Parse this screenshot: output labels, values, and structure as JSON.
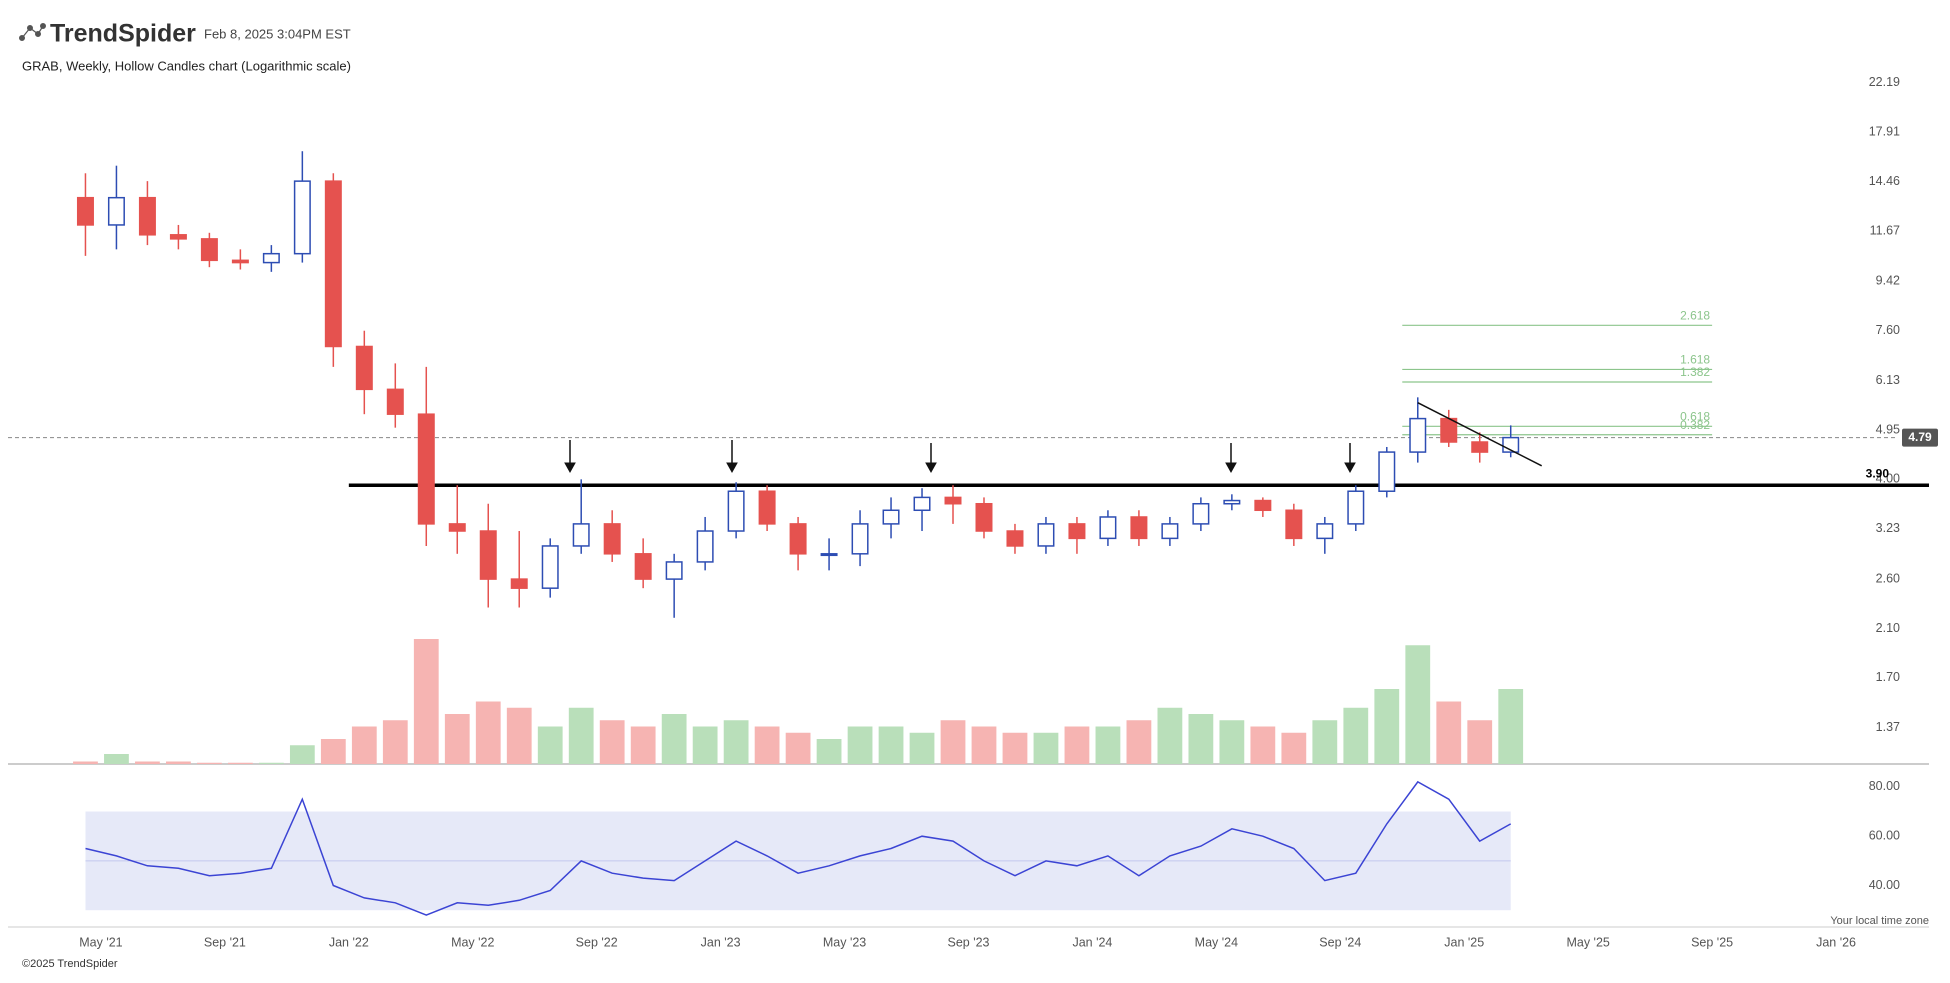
{
  "header": {
    "brand": "TrendSpider",
    "timestamp": "Feb 8, 2025 3:04PM EST",
    "subtitle": "GRAB, Weekly, Hollow Candles chart (Logarithmic scale)"
  },
  "chart_data": {
    "type": "candlestick",
    "x": [
      "2021-04",
      "2021-05",
      "2021-06",
      "2021-07",
      "2021-08",
      "2021-09",
      "2021-10",
      "2021-11",
      "2021-12",
      "2022-01",
      "2022-02",
      "2022-03",
      "2022-04",
      "2022-05",
      "2022-06",
      "2022-07",
      "2022-08",
      "2022-09",
      "2022-10",
      "2022-11",
      "2022-12",
      "2023-01",
      "2023-02",
      "2023-03",
      "2023-04",
      "2023-05",
      "2023-06",
      "2023-07",
      "2023-08",
      "2023-09",
      "2023-10",
      "2023-11",
      "2023-12",
      "2024-01",
      "2024-02",
      "2024-03",
      "2024-04",
      "2024-05",
      "2024-06",
      "2024-07",
      "2024-08",
      "2024-09",
      "2024-10",
      "2024-11",
      "2024-12",
      "2025-01",
      "2025-02"
    ],
    "open": [
      13.5,
      12,
      13.5,
      11.5,
      11.3,
      10.3,
      10.2,
      10.6,
      14.5,
      7.1,
      5.9,
      5.3,
      3.3,
      3.2,
      2.6,
      2.5,
      3.0,
      3.3,
      2.9,
      2.6,
      2.8,
      3.2,
      3.8,
      3.3,
      2.9,
      2.9,
      3.3,
      3.5,
      3.7,
      3.6,
      3.2,
      3.0,
      3.3,
      3.1,
      3.4,
      3.1,
      3.3,
      3.6,
      3.65,
      3.5,
      3.1,
      3.3,
      3.8,
      4.5,
      5.2,
      4.7,
      4.5
    ],
    "high": [
      15,
      15.5,
      14.5,
      12,
      11.6,
      10.8,
      11,
      16.5,
      15,
      7.6,
      6.6,
      6.5,
      3.9,
      3.6,
      3.2,
      3.1,
      4.0,
      3.5,
      3.1,
      2.9,
      3.4,
      3.95,
      3.9,
      3.4,
      3.1,
      3.5,
      3.7,
      3.85,
      3.9,
      3.7,
      3.3,
      3.4,
      3.4,
      3.5,
      3.5,
      3.4,
      3.7,
      3.75,
      3.7,
      3.6,
      3.4,
      3.9,
      4.6,
      5.7,
      5.4,
      4.9,
      5.05
    ],
    "low": [
      10.5,
      10.8,
      11,
      10.8,
      10,
      9.9,
      9.8,
      10.2,
      6.5,
      5.3,
      5.0,
      3.0,
      2.9,
      2.3,
      2.3,
      2.4,
      2.9,
      2.8,
      2.5,
      2.2,
      2.7,
      3.1,
      3.2,
      2.7,
      2.7,
      2.75,
      3.1,
      3.2,
      3.3,
      3.1,
      2.9,
      2.9,
      2.9,
      3.0,
      3.0,
      3.0,
      3.2,
      3.5,
      3.4,
      3.0,
      2.9,
      3.2,
      3.7,
      4.3,
      4.6,
      4.3,
      4.4
    ],
    "close": [
      12,
      13.5,
      11.5,
      11.3,
      10.3,
      10.2,
      10.6,
      14.5,
      7.1,
      5.9,
      5.3,
      3.3,
      3.2,
      2.6,
      2.5,
      3.0,
      3.3,
      2.9,
      2.6,
      2.8,
      3.2,
      3.8,
      3.3,
      2.9,
      2.9,
      3.3,
      3.5,
      3.7,
      3.6,
      3.2,
      3.0,
      3.3,
      3.1,
      3.4,
      3.1,
      3.3,
      3.6,
      3.65,
      3.5,
      3.1,
      3.3,
      3.8,
      4.5,
      5.2,
      4.7,
      4.5,
      4.79
    ],
    "volume": [
      2,
      8,
      2,
      2,
      1,
      1,
      1,
      15,
      20,
      30,
      35,
      100,
      40,
      50,
      45,
      30,
      45,
      35,
      30,
      40,
      30,
      35,
      30,
      25,
      20,
      30,
      30,
      25,
      35,
      30,
      25,
      25,
      30,
      30,
      35,
      45,
      40,
      35,
      30,
      25,
      35,
      45,
      60,
      95,
      50,
      35,
      60
    ],
    "volume_ylim": [
      0,
      120
    ],
    "log_scale": true,
    "ylim": [
      1.17,
      23.03
    ],
    "yticks": [
      22.19,
      17.91,
      14.46,
      11.67,
      9.42,
      {
        "value": 7.6,
        "label": "7.60"
      },
      6.13,
      4.95,
      {
        "value": 4,
        "label": "4.00"
      },
      3.23,
      {
        "value": 2.6,
        "label": "2.60"
      },
      {
        "value": 2.1,
        "label": "2.10"
      },
      {
        "value": 1.7,
        "label": "1.70"
      },
      1.37
    ],
    "xlim": [
      "2021-02",
      "2026-04"
    ],
    "xticks": [
      {
        "value": "2021-05",
        "label": "May '21"
      },
      {
        "value": "2021-09",
        "label": "Sep '21"
      },
      {
        "value": "2022-01",
        "label": "Jan '22"
      },
      {
        "value": "2022-05",
        "label": "May '22"
      },
      {
        "value": "2022-09",
        "label": "Sep '22"
      },
      {
        "value": "2023-01",
        "label": "Jan '23"
      },
      {
        "value": "2023-05",
        "label": "May '23"
      },
      {
        "value": "2023-09",
        "label": "Sep '23"
      },
      {
        "value": "2024-01",
        "label": "Jan '24"
      },
      {
        "value": "2024-05",
        "label": "May '24"
      },
      {
        "value": "2024-09",
        "label": "Sep '24"
      },
      {
        "value": "2025-01",
        "label": "Jan '25"
      },
      {
        "value": "2025-05",
        "label": "May '25"
      },
      {
        "value": "2025-09",
        "label": "Sep '25"
      },
      {
        "value": "2026-01",
        "label": "Jan '26"
      }
    ],
    "up_color": "#2d4db3",
    "down_color": "#e5524f",
    "volume_up_color": "#b9dfba",
    "volume_down_color": "#f6b4b2",
    "last_price": 4.79,
    "support": {
      "value": 3.9,
      "label": "3.90",
      "from": "2022-01"
    },
    "fib_levels": [
      {
        "label": "2.618",
        "value": 7.78
      },
      {
        "label": "1.618",
        "value": 6.43
      },
      {
        "label": "1.382",
        "value": 6.09
      },
      {
        "label": "0.618",
        "value": 5.03
      },
      {
        "label": "0.382",
        "value": 4.85
      }
    ],
    "fib_range": [
      "2024-11",
      "2025-09"
    ],
    "fib_color": "#8cc58c",
    "trendline": {
      "x": [
        "2024-11",
        "2025-03"
      ],
      "y": [
        5.57,
        4.24
      ]
    },
    "rsi": {
      "values": [
        55,
        52,
        48,
        47,
        44,
        45,
        47,
        75,
        40,
        35,
        33,
        28,
        33,
        32,
        34,
        38,
        50,
        45,
        43,
        42,
        50,
        58,
        52,
        45,
        48,
        52,
        55,
        60,
        58,
        50,
        44,
        50,
        48,
        52,
        44,
        52,
        56,
        63,
        60,
        55,
        42,
        45,
        65,
        82,
        75,
        58,
        65
      ],
      "ylim": [
        24,
        84
      ],
      "yticks": [
        {
          "value": 80,
          "label": "80.00"
        },
        {
          "value": 60,
          "label": "60.00"
        },
        {
          "value": 40,
          "label": "40.00"
        }
      ],
      "band": [
        30,
        70
      ],
      "midline": 50,
      "color": "#3b44d4"
    }
  },
  "footer": {
    "copyright": "©2025 TrendSpider",
    "timezone": "Your local time zone"
  }
}
